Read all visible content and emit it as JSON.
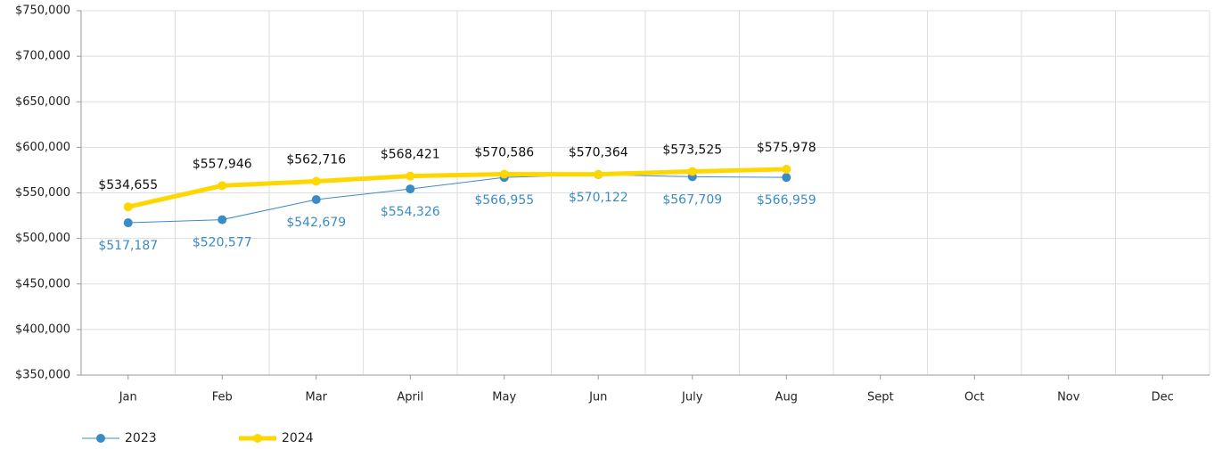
{
  "chart_data": {
    "type": "line",
    "categories": [
      "Jan",
      "Feb",
      "Mar",
      "April",
      "May",
      "Jun",
      "July",
      "Aug",
      "Sept",
      "Oct",
      "Nov",
      "Dec"
    ],
    "series": [
      {
        "name": "2023",
        "color": "#3a8cc6",
        "line_width": 1,
        "values": [
          517187,
          520577,
          542679,
          554326,
          566955,
          570122,
          567709,
          566959,
          null,
          null,
          null,
          null
        ],
        "value_labels": [
          "$517,187",
          "$520,577",
          "$542,679",
          "$554,326",
          "$566,955",
          "$570,122",
          "$567,709",
          "$566,959",
          null,
          null,
          null,
          null
        ]
      },
      {
        "name": "2024",
        "color": "#ffd700",
        "line_width": 5,
        "values": [
          534655,
          557946,
          562716,
          568421,
          570586,
          570364,
          573525,
          575978,
          null,
          null,
          null,
          null
        ],
        "value_labels": [
          "$534,655",
          "$557,946",
          "$562,716",
          "$568,421",
          "$570,586",
          "$570,364",
          "$573,525",
          "$575,978",
          null,
          null,
          null,
          null
        ]
      }
    ],
    "ylim": [
      350000,
      750000
    ],
    "yticks": [
      {
        "value": 350000,
        "label": "$350,000"
      },
      {
        "value": 400000,
        "label": "$400,000"
      },
      {
        "value": 450000,
        "label": "$450,000"
      },
      {
        "value": 500000,
        "label": "$500,000"
      },
      {
        "value": 550000,
        "label": "$550,000"
      },
      {
        "value": 600000,
        "label": "$600,000"
      },
      {
        "value": 650000,
        "label": "$650,000"
      },
      {
        "value": 700000,
        "label": "$700,000"
      },
      {
        "value": 750000,
        "label": "$750,000"
      }
    ],
    "grid": true,
    "legend": "bottom-left"
  }
}
